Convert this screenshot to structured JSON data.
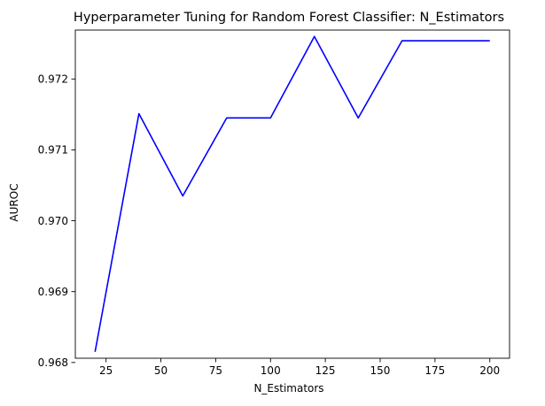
{
  "chart_data": {
    "type": "line",
    "title": "Hyperparameter Tuning for Random Forest Classifier: N_Estimators",
    "xlabel": "N_Estimators",
    "ylabel": "AUROC",
    "x": [
      20,
      40,
      60,
      80,
      100,
      120,
      140,
      160,
      180,
      200
    ],
    "series": [
      {
        "values": [
          0.96815,
          0.97151,
          0.97035,
          0.97145,
          0.97145,
          0.9726,
          0.97145,
          0.97254,
          0.97254,
          0.97254
        ],
        "color": "#0000ff"
      }
    ],
    "xlim": [
      11,
      209
    ],
    "ylim": [
      0.96806,
      0.97269
    ],
    "xticks": [
      25,
      50,
      75,
      100,
      125,
      150,
      175,
      200
    ],
    "xtick_labels": [
      "25",
      "50",
      "75",
      "100",
      "125",
      "150",
      "175",
      "200"
    ],
    "yticks": [
      0.968,
      0.969,
      0.97,
      0.971,
      0.972
    ],
    "ytick_labels": [
      "0.968",
      "0.969",
      "0.970",
      "0.971",
      "0.972"
    ],
    "grid": false,
    "legend": "none"
  }
}
